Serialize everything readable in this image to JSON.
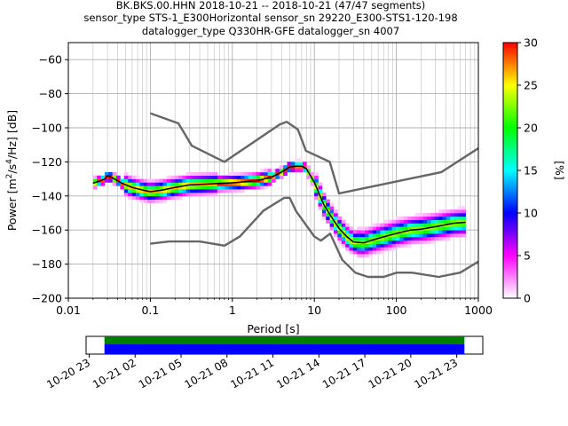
{
  "title_lines": [
    "BK.BKS.00.HHN   2018-10-21 -- 2018-10-21  (47/47 segments)",
    "sensor_type STS-1_E300Horizontal sensor_sn 29220_E300-STS1-120-198",
    "datalogger_type Q330HR-GFE datalogger_sn 4007"
  ],
  "chart_data": {
    "type": "heatmap",
    "xlabel": "Period [s]",
    "ylabel_parts": [
      "Power [m",
      "2",
      "/s",
      "4",
      "/Hz] [dB]"
    ],
    "xscale": "log",
    "xlim": [
      0.01,
      1000
    ],
    "ylim": [
      -200,
      -50
    ],
    "xticks": [
      0.01,
      0.1,
      1,
      10,
      100,
      1000
    ],
    "xtick_labels": [
      "0.01",
      "0.1",
      "1",
      "10",
      "100",
      "1000"
    ],
    "yticks": [
      -200,
      -180,
      -160,
      -140,
      -120,
      -100,
      -80,
      -60
    ],
    "ytick_labels": [
      "−200",
      "−180",
      "−160",
      "−140",
      "−120",
      "−100",
      "−80",
      "−60"
    ],
    "grid": true,
    "colorbar": {
      "label": "[%]",
      "range": [
        0,
        30
      ],
      "ticks": [
        0,
        5,
        10,
        15,
        20,
        25,
        30
      ],
      "tick_labels": [
        "0",
        "5",
        "10",
        "15",
        "20",
        "25",
        "30"
      ],
      "colormap": [
        "#ffffff",
        "#ff00ff",
        "#0000ff",
        "#00ffff",
        "#00ff00",
        "#ffff00",
        "#ff0000"
      ]
    },
    "noise_model_color": "#666666",
    "nhnm_upper": {
      "period": [
        0.1,
        0.22,
        0.32,
        0.8,
        3.8,
        4.6,
        6.3,
        7.9,
        15.4,
        20,
        354.8,
        1000
      ],
      "db": [
        -91.5,
        -97.4,
        -110.5,
        -120,
        -98,
        -96.5,
        -101,
        -113.5,
        -120,
        -138.5,
        -126,
        -112
      ]
    },
    "nlnm_lower": {
      "period": [
        0.1,
        0.17,
        0.4,
        0.8,
        1.24,
        2.4,
        4.3,
        5,
        6,
        10,
        12,
        15.6,
        21.9,
        31.6,
        45,
        70,
        101,
        154,
        328,
        600,
        1000
      ],
      "db": [
        -168,
        -166.7,
        -166.7,
        -169.2,
        -163.7,
        -148.6,
        -141.1,
        -141.1,
        -149,
        -163.8,
        -166.2,
        -162.1,
        -177.5,
        -185,
        -187.5,
        -187.5,
        -185,
        -185,
        -187.5,
        -185,
        -178.5
      ]
    },
    "series": [
      {
        "name": "",
        "color": "#000000",
        "period": [
          0.02,
          0.025,
          0.028,
          0.03,
          0.035,
          0.045,
          0.06,
          0.08,
          0.1,
          0.14,
          0.2,
          0.3,
          0.5,
          0.8,
          1.2,
          2,
          3,
          4,
          5,
          6,
          7,
          8,
          10,
          13,
          16,
          20,
          25,
          30,
          40,
          50,
          70,
          100,
          150,
          200,
          300,
          500,
          700
        ],
        "db": [
          -132.5,
          -131,
          -130,
          -128,
          -129.5,
          -132.5,
          -135,
          -136.5,
          -137.5,
          -136.5,
          -135,
          -133.5,
          -133,
          -132.5,
          -132,
          -131,
          -129,
          -126,
          -123,
          -122.5,
          -122.5,
          -124,
          -132,
          -145,
          -152,
          -159,
          -164,
          -167,
          -167.5,
          -166,
          -164,
          -162,
          -160,
          -159.5,
          -158,
          -156,
          -155.5
        ]
      }
    ],
    "time_axis": {
      "labels": [
        "10-20 23",
        "10-21 02",
        "10-21 05",
        "10-21 08",
        "10-21 11",
        "10-21 14",
        "10-21 17",
        "10-21 20",
        "10-21 23"
      ],
      "range_hours": [
        -1.2,
        24.7
      ],
      "ticks_hours": [
        -1,
        2,
        5,
        8,
        11,
        14,
        17,
        20,
        23
      ],
      "coverage_hours": [
        0,
        23.5
      ],
      "coverage_colors": [
        "#008000",
        "#0000ff"
      ]
    }
  }
}
